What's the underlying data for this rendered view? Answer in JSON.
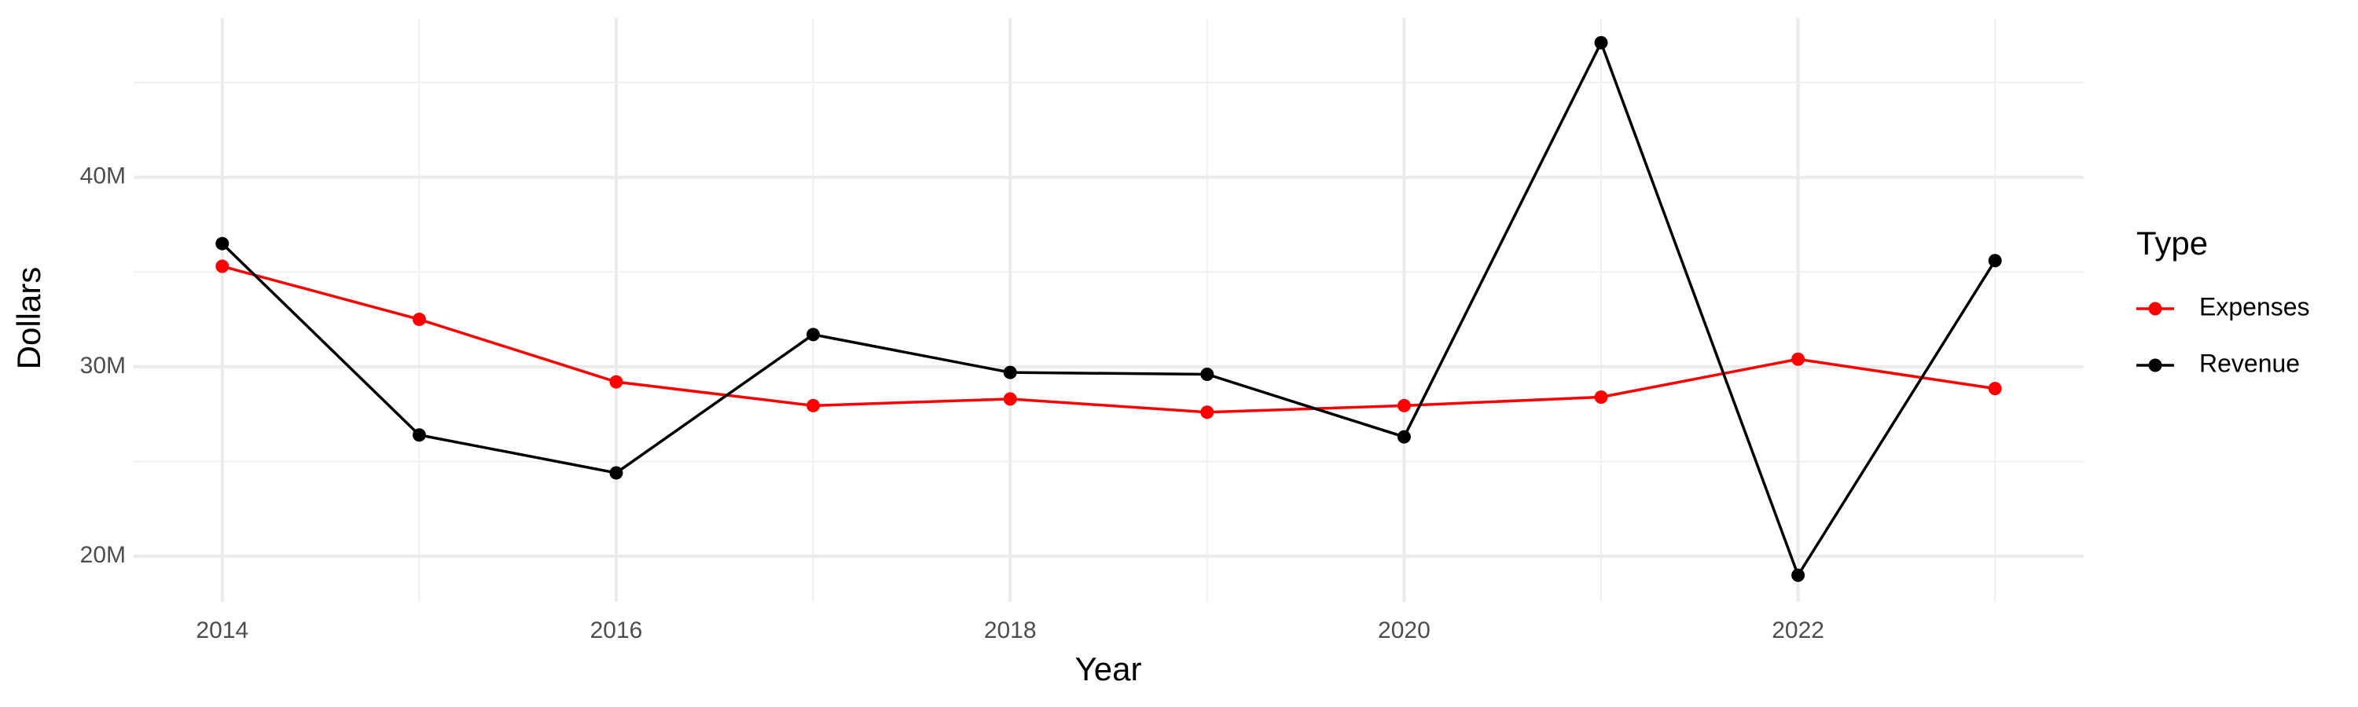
{
  "chart_data": {
    "type": "line",
    "x_label": "Year",
    "y_label": "Dollars",
    "legend_title": "Type",
    "x": [
      2014,
      2015,
      2016,
      2017,
      2018,
      2019,
      2020,
      2021,
      2022,
      2023
    ],
    "series": [
      {
        "name": "Expenses",
        "color": "#ff0000",
        "values": [
          35300000,
          32500000,
          29200000,
          27950000,
          28300000,
          27600000,
          27950000,
          28400000,
          30400000,
          28850000
        ]
      },
      {
        "name": "Revenue",
        "color": "#000000",
        "values": [
          36500000,
          26400000,
          24400000,
          31700000,
          29700000,
          29600000,
          26300000,
          47100000,
          19000000,
          35600000
        ]
      }
    ],
    "xlim": [
      2013.55,
      2023.45
    ],
    "xticks": [
      2014,
      2016,
      2018,
      2020,
      2022
    ],
    "ylim": [
      17600000,
      48400000
    ],
    "yticks": [
      {
        "value": 20000000,
        "label": "20M"
      },
      {
        "value": 30000000,
        "label": "30M"
      },
      {
        "value": 40000000,
        "label": "40M"
      }
    ],
    "grid": true,
    "legend": "right"
  }
}
